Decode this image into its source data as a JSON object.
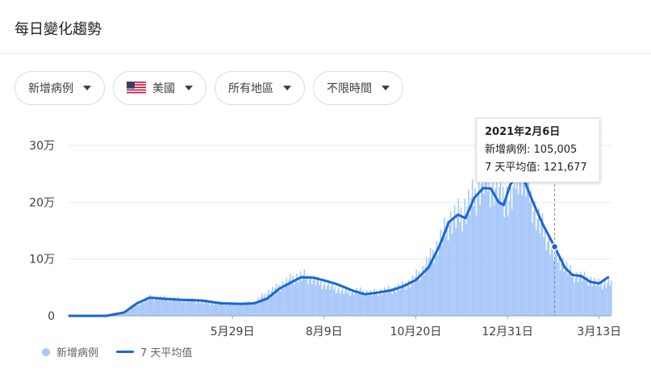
{
  "card": {
    "title": "每日變化趨勢"
  },
  "filters": [
    {
      "label": "新增病例",
      "icon": "caret-down-icon"
    },
    {
      "label": "美國",
      "icon": "us-flag-icon"
    },
    {
      "label": "所有地區",
      "icon": "caret-down-icon"
    },
    {
      "label": "不限時間",
      "icon": "caret-down-icon"
    }
  ],
  "tooltip": {
    "date": "2021年2月6日",
    "cases_label": "新增病例",
    "cases_value": "105,005",
    "avg_label": "7 天平均值",
    "avg_value": "121,677"
  },
  "legend": {
    "bars_label": "新增病例",
    "line_label": "7 天平均值"
  },
  "colors": {
    "bars": "#a8c7fa",
    "line": "#1967d2",
    "grid": "#e8eaed",
    "marker": "#1967d2"
  },
  "chart_data": {
    "type": "bar",
    "title": "",
    "xlabel": "",
    "ylabel": "",
    "ylim": [
      0,
      300000
    ],
    "y_ticks": [
      "0",
      "10万",
      "20万",
      "30万"
    ],
    "x_ticks": [
      "5月29日",
      "8月9日",
      "10月20日",
      "12月31日",
      "3月13日"
    ],
    "x_start": "2020-01-22",
    "x_end": "2021-03-22",
    "highlight_date": "2021-02-06",
    "series": [
      {
        "name": "新增病例",
        "kind": "bar",
        "dates": [
          "2020-01-22",
          "2020-03-01",
          "2020-03-15",
          "2020-03-25",
          "2020-04-04",
          "2020-04-15",
          "2020-05-01",
          "2020-05-15",
          "2020-06-01",
          "2020-06-15",
          "2020-06-25",
          "2020-07-05",
          "2020-07-15",
          "2020-07-24",
          "2020-08-05",
          "2020-08-15",
          "2020-08-25",
          "2020-09-05",
          "2020-09-15",
          "2020-09-25",
          "2020-10-05",
          "2020-10-15",
          "2020-10-25",
          "2020-11-05",
          "2020-11-15",
          "2020-11-25",
          "2020-12-05",
          "2020-12-12",
          "2020-12-18",
          "2020-12-26",
          "2021-01-02",
          "2021-01-08",
          "2021-01-15",
          "2021-01-22",
          "2021-01-29",
          "2021-02-06",
          "2021-02-13",
          "2021-02-20",
          "2021-02-27",
          "2021-03-06",
          "2021-03-13",
          "2021-03-22"
        ],
        "values": [
          0,
          2000,
          20000,
          32000,
          31000,
          29000,
          26000,
          22000,
          21000,
          23000,
          40000,
          52000,
          66000,
          70000,
          58000,
          50000,
          42000,
          43000,
          40000,
          44000,
          48000,
          58000,
          80000,
          120000,
          165000,
          180000,
          210000,
          240000,
          230000,
          215000,
          200000,
          260000,
          230000,
          175000,
          145000,
          105000,
          90000,
          70000,
          68000,
          62000,
          55000,
          60000
        ]
      },
      {
        "name": "7 天平均值",
        "kind": "line",
        "dates": [
          "2020-01-22",
          "2020-02-20",
          "2020-03-05",
          "2020-03-15",
          "2020-03-25",
          "2020-04-05",
          "2020-04-20",
          "2020-05-05",
          "2020-05-20",
          "2020-06-05",
          "2020-06-15",
          "2020-06-25",
          "2020-07-05",
          "2020-07-15",
          "2020-07-22",
          "2020-08-01",
          "2020-08-10",
          "2020-08-20",
          "2020-09-01",
          "2020-09-10",
          "2020-09-20",
          "2020-10-01",
          "2020-10-10",
          "2020-10-20",
          "2020-10-30",
          "2020-11-08",
          "2020-11-15",
          "2020-11-22",
          "2020-11-28",
          "2020-12-05",
          "2020-12-12",
          "2020-12-18",
          "2020-12-24",
          "2020-12-28",
          "2021-01-02",
          "2021-01-08",
          "2021-01-12",
          "2021-01-20",
          "2021-01-28",
          "2021-02-06",
          "2021-02-14",
          "2021-02-20",
          "2021-02-27",
          "2021-03-06",
          "2021-03-13",
          "2021-03-20"
        ],
        "values": [
          0,
          0,
          6000,
          22000,
          32000,
          30000,
          28000,
          27000,
          22000,
          21000,
          22000,
          30000,
          48000,
          60000,
          68000,
          67000,
          62000,
          55000,
          44000,
          38000,
          41000,
          45000,
          52000,
          63000,
          85000,
          125000,
          165000,
          178000,
          172000,
          208000,
          225000,
          224000,
          200000,
          195000,
          230000,
          250000,
          245000,
          200000,
          160000,
          121677,
          85000,
          72000,
          70000,
          60000,
          57000,
          68000
        ]
      }
    ]
  }
}
